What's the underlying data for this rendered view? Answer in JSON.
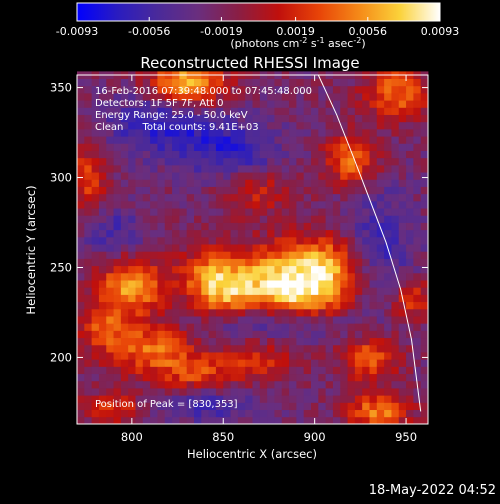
{
  "colors": {
    "background": "#000000",
    "foreground": "#ffffff",
    "colormap": [
      "#0000ff",
      "#2a1cc0",
      "#4a2a9a",
      "#6a2e7e",
      "#8a1e44",
      "#c0100c",
      "#e84408",
      "#f58a18",
      "#fbd23a",
      "#ffffff"
    ]
  },
  "colorbar": {
    "tick_labels": [
      "-0.0093",
      "-0.0056",
      "-0.0019",
      "0.0019",
      "0.0056",
      "0.0093"
    ],
    "label_main": "(photons cm",
    "label_sup1": "-2",
    "label_mid1": " s",
    "label_sup2": "-1",
    "label_mid2": " asec",
    "label_sup3": "-2",
    "label_end": ")"
  },
  "chart_data": {
    "type": "heatmap",
    "title": "Reconstructed RHESSI Image",
    "xlabel": "Heliocentric X (arcsec)",
    "ylabel": "Heliocentric Y (arcsec)",
    "xlim": [
      770,
      962
    ],
    "ylim": [
      163,
      357
    ],
    "x_ticks": [
      800,
      850,
      900,
      950
    ],
    "y_ticks": [
      200,
      250,
      300,
      350
    ],
    "value_range": [
      -0.0093,
      0.0093
    ],
    "grid": false,
    "pixel_size_arcsec": 4,
    "hotspots": [
      {
        "x": 830,
        "y": 353,
        "amp": 0.0093,
        "sx": 14,
        "sy": 10
      },
      {
        "x": 905,
        "y": 250,
        "amp": 0.0085,
        "sx": 16,
        "sy": 12
      },
      {
        "x": 873,
        "y": 246,
        "amp": 0.0068,
        "sx": 18,
        "sy": 12
      },
      {
        "x": 842,
        "y": 247,
        "amp": 0.0058,
        "sx": 12,
        "sy": 10
      },
      {
        "x": 892,
        "y": 232,
        "amp": 0.006,
        "sx": 20,
        "sy": 9
      },
      {
        "x": 850,
        "y": 234,
        "amp": 0.0048,
        "sx": 12,
        "sy": 8
      },
      {
        "x": 800,
        "y": 240,
        "amp": 0.0082,
        "sx": 12,
        "sy": 11
      },
      {
        "x": 810,
        "y": 205,
        "amp": 0.0065,
        "sx": 16,
        "sy": 10
      },
      {
        "x": 783,
        "y": 218,
        "amp": 0.005,
        "sx": 9,
        "sy": 10
      },
      {
        "x": 835,
        "y": 190,
        "amp": 0.005,
        "sx": 14,
        "sy": 8
      },
      {
        "x": 868,
        "y": 198,
        "amp": 0.0045,
        "sx": 14,
        "sy": 8
      },
      {
        "x": 920,
        "y": 310,
        "amp": 0.0068,
        "sx": 10,
        "sy": 10
      },
      {
        "x": 945,
        "y": 347,
        "amp": 0.0065,
        "sx": 12,
        "sy": 10
      },
      {
        "x": 930,
        "y": 200,
        "amp": 0.0058,
        "sx": 11,
        "sy": 9
      },
      {
        "x": 953,
        "y": 232,
        "amp": 0.005,
        "sx": 9,
        "sy": 8
      },
      {
        "x": 935,
        "y": 170,
        "amp": 0.0068,
        "sx": 12,
        "sy": 7
      },
      {
        "x": 790,
        "y": 172,
        "amp": 0.0045,
        "sx": 12,
        "sy": 6
      },
      {
        "x": 776,
        "y": 300,
        "amp": 0.0048,
        "sx": 7,
        "sy": 14
      },
      {
        "x": 868,
        "y": 293,
        "amp": 0.0038,
        "sx": 14,
        "sy": 9
      },
      {
        "x": 815,
        "y": 330,
        "amp": -0.005,
        "sx": 20,
        "sy": 12
      },
      {
        "x": 855,
        "y": 315,
        "amp": -0.0045,
        "sx": 20,
        "sy": 12
      },
      {
        "x": 880,
        "y": 220,
        "amp": -0.004,
        "sx": 25,
        "sy": 7
      },
      {
        "x": 935,
        "y": 260,
        "amp": -0.004,
        "sx": 14,
        "sy": 24
      },
      {
        "x": 840,
        "y": 175,
        "amp": -0.0038,
        "sx": 20,
        "sy": 8
      },
      {
        "x": 790,
        "y": 270,
        "amp": -0.0035,
        "sx": 12,
        "sy": 10
      }
    ],
    "limb_curve": {
      "x": [
        902,
        912,
        921,
        930,
        939,
        947,
        953,
        958
      ],
      "y": [
        357,
        335,
        312,
        288,
        264,
        238,
        210,
        170
      ]
    },
    "annotations": [
      "16-Feb-2016 07:39:48.000 to 07:45:48.000",
      "Detectors: 1F 5F 7F, Att 0",
      "Energy Range: 25.0 - 50.0 keV",
      "Clean      Total counts: 9.41E+03",
      "Position of Peak = [830,353]"
    ]
  },
  "footer": {
    "timestamp": "18-May-2022 04:52"
  }
}
